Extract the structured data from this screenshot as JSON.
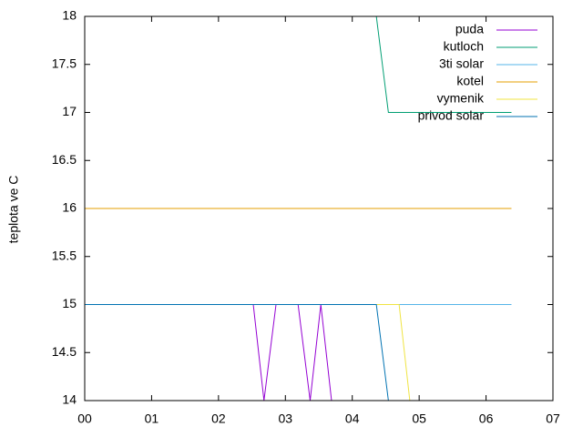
{
  "chart_data": {
    "type": "line",
    "ylabel": "teplota ve C",
    "xlim": [
      0,
      7
    ],
    "xticks": [
      {
        "value": 0,
        "label": "00"
      },
      {
        "value": 1,
        "label": "01"
      },
      {
        "value": 2,
        "label": "02"
      },
      {
        "value": 3,
        "label": "03"
      },
      {
        "value": 4,
        "label": "04"
      },
      {
        "value": 5,
        "label": "05"
      },
      {
        "value": 6,
        "label": "06"
      },
      {
        "value": 7,
        "label": "07"
      }
    ],
    "ylim": [
      14,
      18
    ],
    "yticks": [
      14,
      14.5,
      15,
      15.5,
      16,
      16.5,
      17,
      17.5,
      18
    ],
    "legend": "top-right",
    "series": [
      {
        "name": "puda",
        "color": "#9400d3",
        "x": [
          0,
          2.52,
          2.68,
          2.86,
          3.19,
          3.37,
          3.53,
          3.69
        ],
        "values": [
          15,
          15,
          14,
          15,
          15,
          14,
          15,
          14
        ]
      },
      {
        "name": "kutloch",
        "color": "#009e73",
        "x": [
          4.36,
          4.54,
          6.38
        ],
        "values": [
          18,
          17,
          17
        ]
      },
      {
        "name": "3ti solar",
        "color": "#56b4e9",
        "x": [
          0,
          6.38
        ],
        "values": [
          15,
          15
        ]
      },
      {
        "name": "kotel",
        "color": "#e69f00",
        "x": [
          0,
          6.38
        ],
        "values": [
          16,
          16
        ]
      },
      {
        "name": "vymenik",
        "color": "#f0e442",
        "x": [
          0,
          4.7,
          4.86
        ],
        "values": [
          15,
          15,
          14
        ]
      },
      {
        "name": "privod solar",
        "color": "#0072b2",
        "x": [
          0,
          4.36,
          4.54
        ],
        "values": [
          15,
          15,
          14
        ]
      }
    ]
  }
}
